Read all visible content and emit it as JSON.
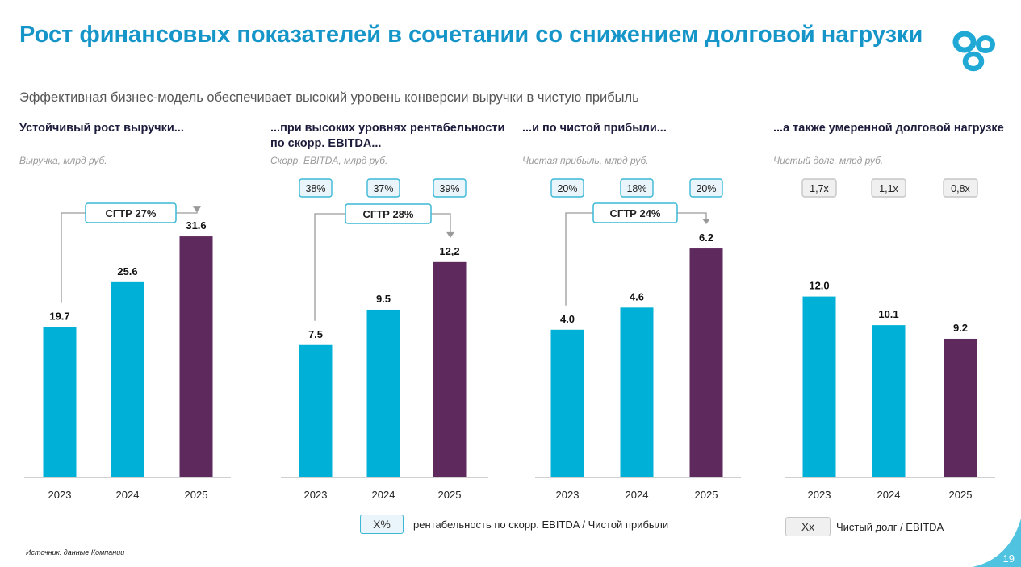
{
  "title": "Рост финансовых показателей в сочетании со снижением долговой нагрузки",
  "subtitle": "Эффективная бизнес-модель обеспечивает высокий уровень конверсии выручки в чистую прибыль",
  "colors": {
    "title": "#1695c8",
    "cyan_bar": "#00b0d6",
    "purple_bar": "#5e2a5e",
    "badge_border": "#3cb8d6",
    "badge_bg": "#e9f5fa",
    "grey_badge_bg": "#f0f0f0"
  },
  "icons": {
    "logo": "company-logo-icon"
  },
  "sections": [
    {
      "heading": "Устойчивый рост выручки...",
      "unit": "Выручка, млрд руб."
    },
    {
      "heading": "...при высоких уровнях рентабельности по скорр. EBITDA...",
      "unit": "Скорр. EBITDA, млрд руб."
    },
    {
      "heading": "...и по чистой прибыли...",
      "unit": "Чистая прибыль, млрд руб."
    },
    {
      "heading": "...а также умеренной долговой нагрузке",
      "unit": "Чистый долг, млрд руб."
    }
  ],
  "chart_data": [
    {
      "type": "bar",
      "categories": [
        "2023",
        "2024",
        "2025"
      ],
      "values": [
        19.7,
        25.6,
        31.6
      ],
      "value_labels": [
        "19.7",
        "25.6",
        "31.6"
      ],
      "cagr_label": "CГТР 27%",
      "badges": []
    },
    {
      "type": "bar",
      "categories": [
        "2023",
        "2024",
        "2025"
      ],
      "values": [
        7.5,
        9.5,
        12.2
      ],
      "value_labels": [
        "7.5",
        "9.5",
        "12,2"
      ],
      "cagr_label": "CГТР 28%",
      "badges": [
        "38%",
        "37%",
        "39%"
      ],
      "badge_style": "pct"
    },
    {
      "type": "bar",
      "categories": [
        "2023",
        "2024",
        "2025"
      ],
      "values": [
        4.0,
        4.6,
        6.2
      ],
      "value_labels": [
        "4.0",
        "4.6",
        "6.2"
      ],
      "cagr_label": "CГТР 24%",
      "badges": [
        "20%",
        "18%",
        "20%"
      ],
      "badge_style": "pct"
    },
    {
      "type": "bar",
      "categories": [
        "2023",
        "2024",
        "2025"
      ],
      "values": [
        12.0,
        10.1,
        9.2
      ],
      "value_labels": [
        "12.0",
        "10.1",
        "9.2"
      ],
      "cagr_label": "",
      "badges": [
        "1,7x",
        "1,1x",
        "0,8x"
      ],
      "badge_style": "ratio"
    }
  ],
  "legend": {
    "pct_box": "X%",
    "pct_text": "рентабельность по скорр. EBITDA / Чистой прибыли",
    "ratio_box": "Xx",
    "ratio_text": "Чистый долг / EBITDA"
  },
  "source": "Источник: данные Компании",
  "page_number": "19"
}
